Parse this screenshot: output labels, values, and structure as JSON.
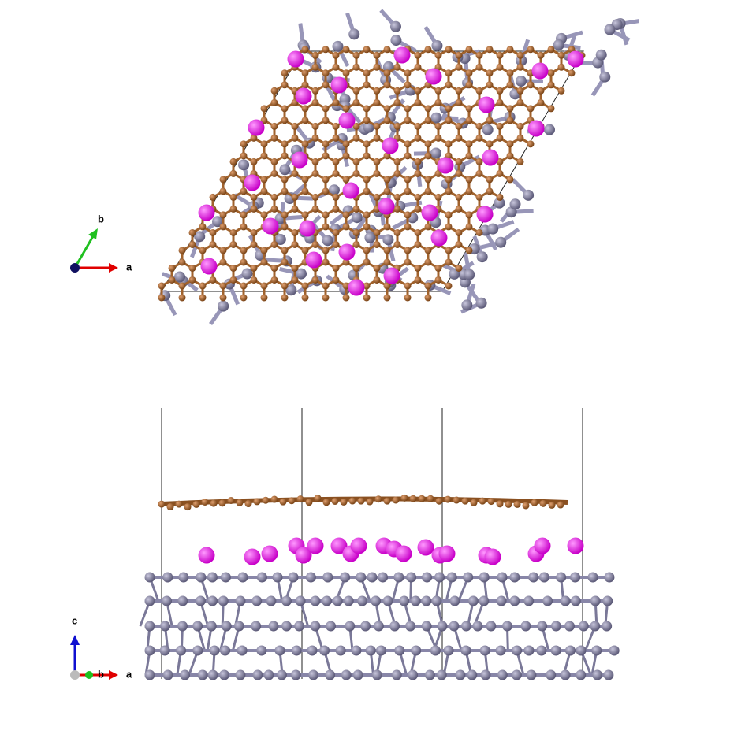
{
  "top_view": {
    "axis_labels": {
      "a": "a",
      "b": "b"
    }
  },
  "side_view": {
    "axis_labels": {
      "c": "c",
      "a": "a",
      "b": "b"
    }
  }
}
